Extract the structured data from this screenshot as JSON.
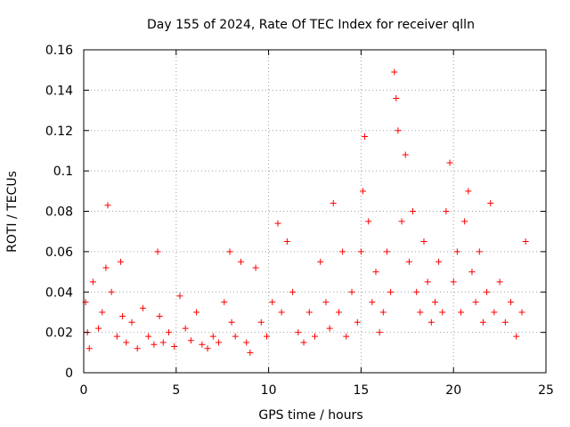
{
  "chart_data": {
    "type": "scatter",
    "title": "Day 155 of 2024, Rate Of TEC Index for receiver qlln",
    "xlabel": "GPS time / hours",
    "ylabel": "ROTI / TECUs",
    "xlim": [
      0,
      25
    ],
    "ylim": [
      0,
      0.16
    ],
    "xticks": [
      0,
      5,
      10,
      15,
      20,
      25
    ],
    "xtick_labels": [
      "0",
      "5",
      "10",
      "15",
      "20",
      "25"
    ],
    "yticks": [
      0,
      0.02,
      0.04,
      0.06,
      0.08,
      0.1,
      0.12,
      0.14,
      0.16
    ],
    "ytick_labels": [
      "0",
      "0.02",
      "0.04",
      "0.06",
      "0.08",
      "0.1",
      "0.12",
      "0.14",
      "0.16"
    ],
    "grid": true,
    "marker": "plus",
    "color": "#ff0000",
    "series": [
      {
        "name": "ROTI",
        "x": [
          0.1,
          0.2,
          0.3,
          0.5,
          0.8,
          1.0,
          1.2,
          1.3,
          1.5,
          1.8,
          2.0,
          2.1,
          2.3,
          2.6,
          2.9,
          3.2,
          3.5,
          3.8,
          4.0,
          4.1,
          4.3,
          4.6,
          4.9,
          5.2,
          5.5,
          5.8,
          6.1,
          6.4,
          6.7,
          7.0,
          7.3,
          7.6,
          7.9,
          8.0,
          8.2,
          8.5,
          8.8,
          9.0,
          9.3,
          9.6,
          9.9,
          10.2,
          10.5,
          10.7,
          11.0,
          11.3,
          11.6,
          11.9,
          12.2,
          12.5,
          12.8,
          13.1,
          13.3,
          13.5,
          13.8,
          14.0,
          14.2,
          14.5,
          14.8,
          15.0,
          15.1,
          15.2,
          15.4,
          15.6,
          15.8,
          16.0,
          16.2,
          16.4,
          16.6,
          16.8,
          16.9,
          17.0,
          17.2,
          17.4,
          17.6,
          17.8,
          18.0,
          18.2,
          18.4,
          18.6,
          18.8,
          19.0,
          19.2,
          19.4,
          19.6,
          19.8,
          20.0,
          20.2,
          20.4,
          20.6,
          20.8,
          21.0,
          21.2,
          21.4,
          21.6,
          21.8,
          22.0,
          22.2,
          22.5,
          22.8,
          23.1,
          23.4,
          23.7,
          23.9
        ],
        "y": [
          0.035,
          0.02,
          0.012,
          0.045,
          0.022,
          0.03,
          0.052,
          0.083,
          0.04,
          0.018,
          0.055,
          0.028,
          0.015,
          0.025,
          0.012,
          0.032,
          0.018,
          0.014,
          0.06,
          0.028,
          0.015,
          0.02,
          0.013,
          0.038,
          0.022,
          0.016,
          0.03,
          0.014,
          0.012,
          0.018,
          0.015,
          0.035,
          0.06,
          0.025,
          0.018,
          0.055,
          0.015,
          0.01,
          0.052,
          0.025,
          0.018,
          0.035,
          0.074,
          0.03,
          0.065,
          0.04,
          0.02,
          0.015,
          0.03,
          0.018,
          0.055,
          0.035,
          0.022,
          0.084,
          0.03,
          0.06,
          0.018,
          0.04,
          0.025,
          0.06,
          0.09,
          0.117,
          0.075,
          0.035,
          0.05,
          0.02,
          0.03,
          0.06,
          0.04,
          0.149,
          0.136,
          0.12,
          0.075,
          0.108,
          0.055,
          0.08,
          0.04,
          0.03,
          0.065,
          0.045,
          0.025,
          0.035,
          0.055,
          0.03,
          0.08,
          0.104,
          0.045,
          0.06,
          0.03,
          0.075,
          0.09,
          0.05,
          0.035,
          0.06,
          0.025,
          0.04,
          0.084,
          0.03,
          0.045,
          0.025,
          0.035,
          0.018,
          0.03,
          0.065
        ]
      }
    ]
  }
}
